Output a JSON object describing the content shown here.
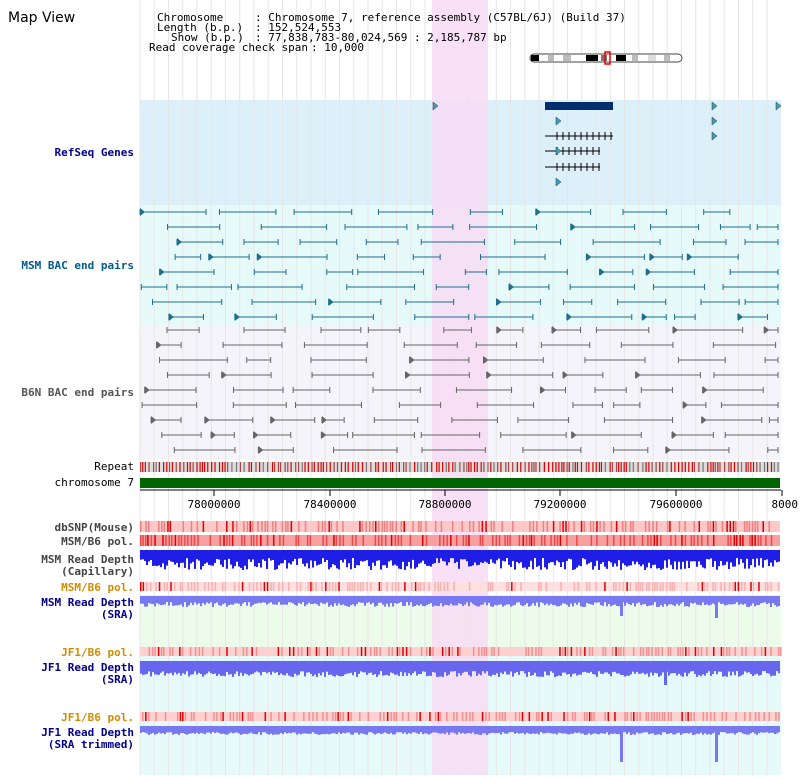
{
  "title": "Map View",
  "info": {
    "chromosome_label": "Chromosome",
    "chromosome_value": ": Chromosome 7, reference assembly (C57BL/6J) (Build 37)",
    "length_label": "Length (b.p.)",
    "length_value": ": 152,524,553",
    "show_label": "Show (b.p.)",
    "show_value": ": 77,838,783-80,024,569 : 2,185,787 bp",
    "span_label": "Read coverage check span",
    "span_value": ": 10,000"
  },
  "tracks": {
    "refseq": "RefSeq Genes",
    "msm_bac": "MSM BAC end pairs",
    "b6n_bac": "B6N BAC end pairs",
    "repeat": "Repeat",
    "chromosome": "chromosome 7",
    "dbsnp": "dbSNP(Mouse)",
    "msm_b6_pol": "MSM/B6 pol.",
    "msm_depth_cap_1": "MSM Read Depth",
    "msm_depth_cap_2": "(Capillary)",
    "msm_b6_pol_sra": "MSM/B6 pol.",
    "msm_depth_sra_1": "MSM Read Depth",
    "msm_depth_sra_2": "(SRA)",
    "jf1_b6_pol": "JF1/B6 pol.",
    "jf1_depth_sra_1": "JF1 Read Depth",
    "jf1_depth_sra_2": "(SRA)",
    "jf1_b6_pol_trim": "JF1/B6 pol.",
    "jf1_depth_trim_1": "JF1 Read Depth",
    "jf1_depth_trim_2": "(SRA trimmed)"
  },
  "axis": {
    "ticks": [
      "78000000",
      "78400000",
      "78800000",
      "79200000",
      "79600000",
      "8000"
    ]
  },
  "colors": {
    "refseq_bg": "#dcf0fa",
    "bac_bg": "#e6fafa",
    "b6n_bg": "#f4f4fa",
    "highlight": "#f7dcf4",
    "msm_label": "#005a8c",
    "blue_label": "#00008c",
    "orange_label": "#d28c00",
    "chromosome_bar": "#006400",
    "depth_blue": "#1e1ee6",
    "depth_light": "#7878f0"
  }
}
